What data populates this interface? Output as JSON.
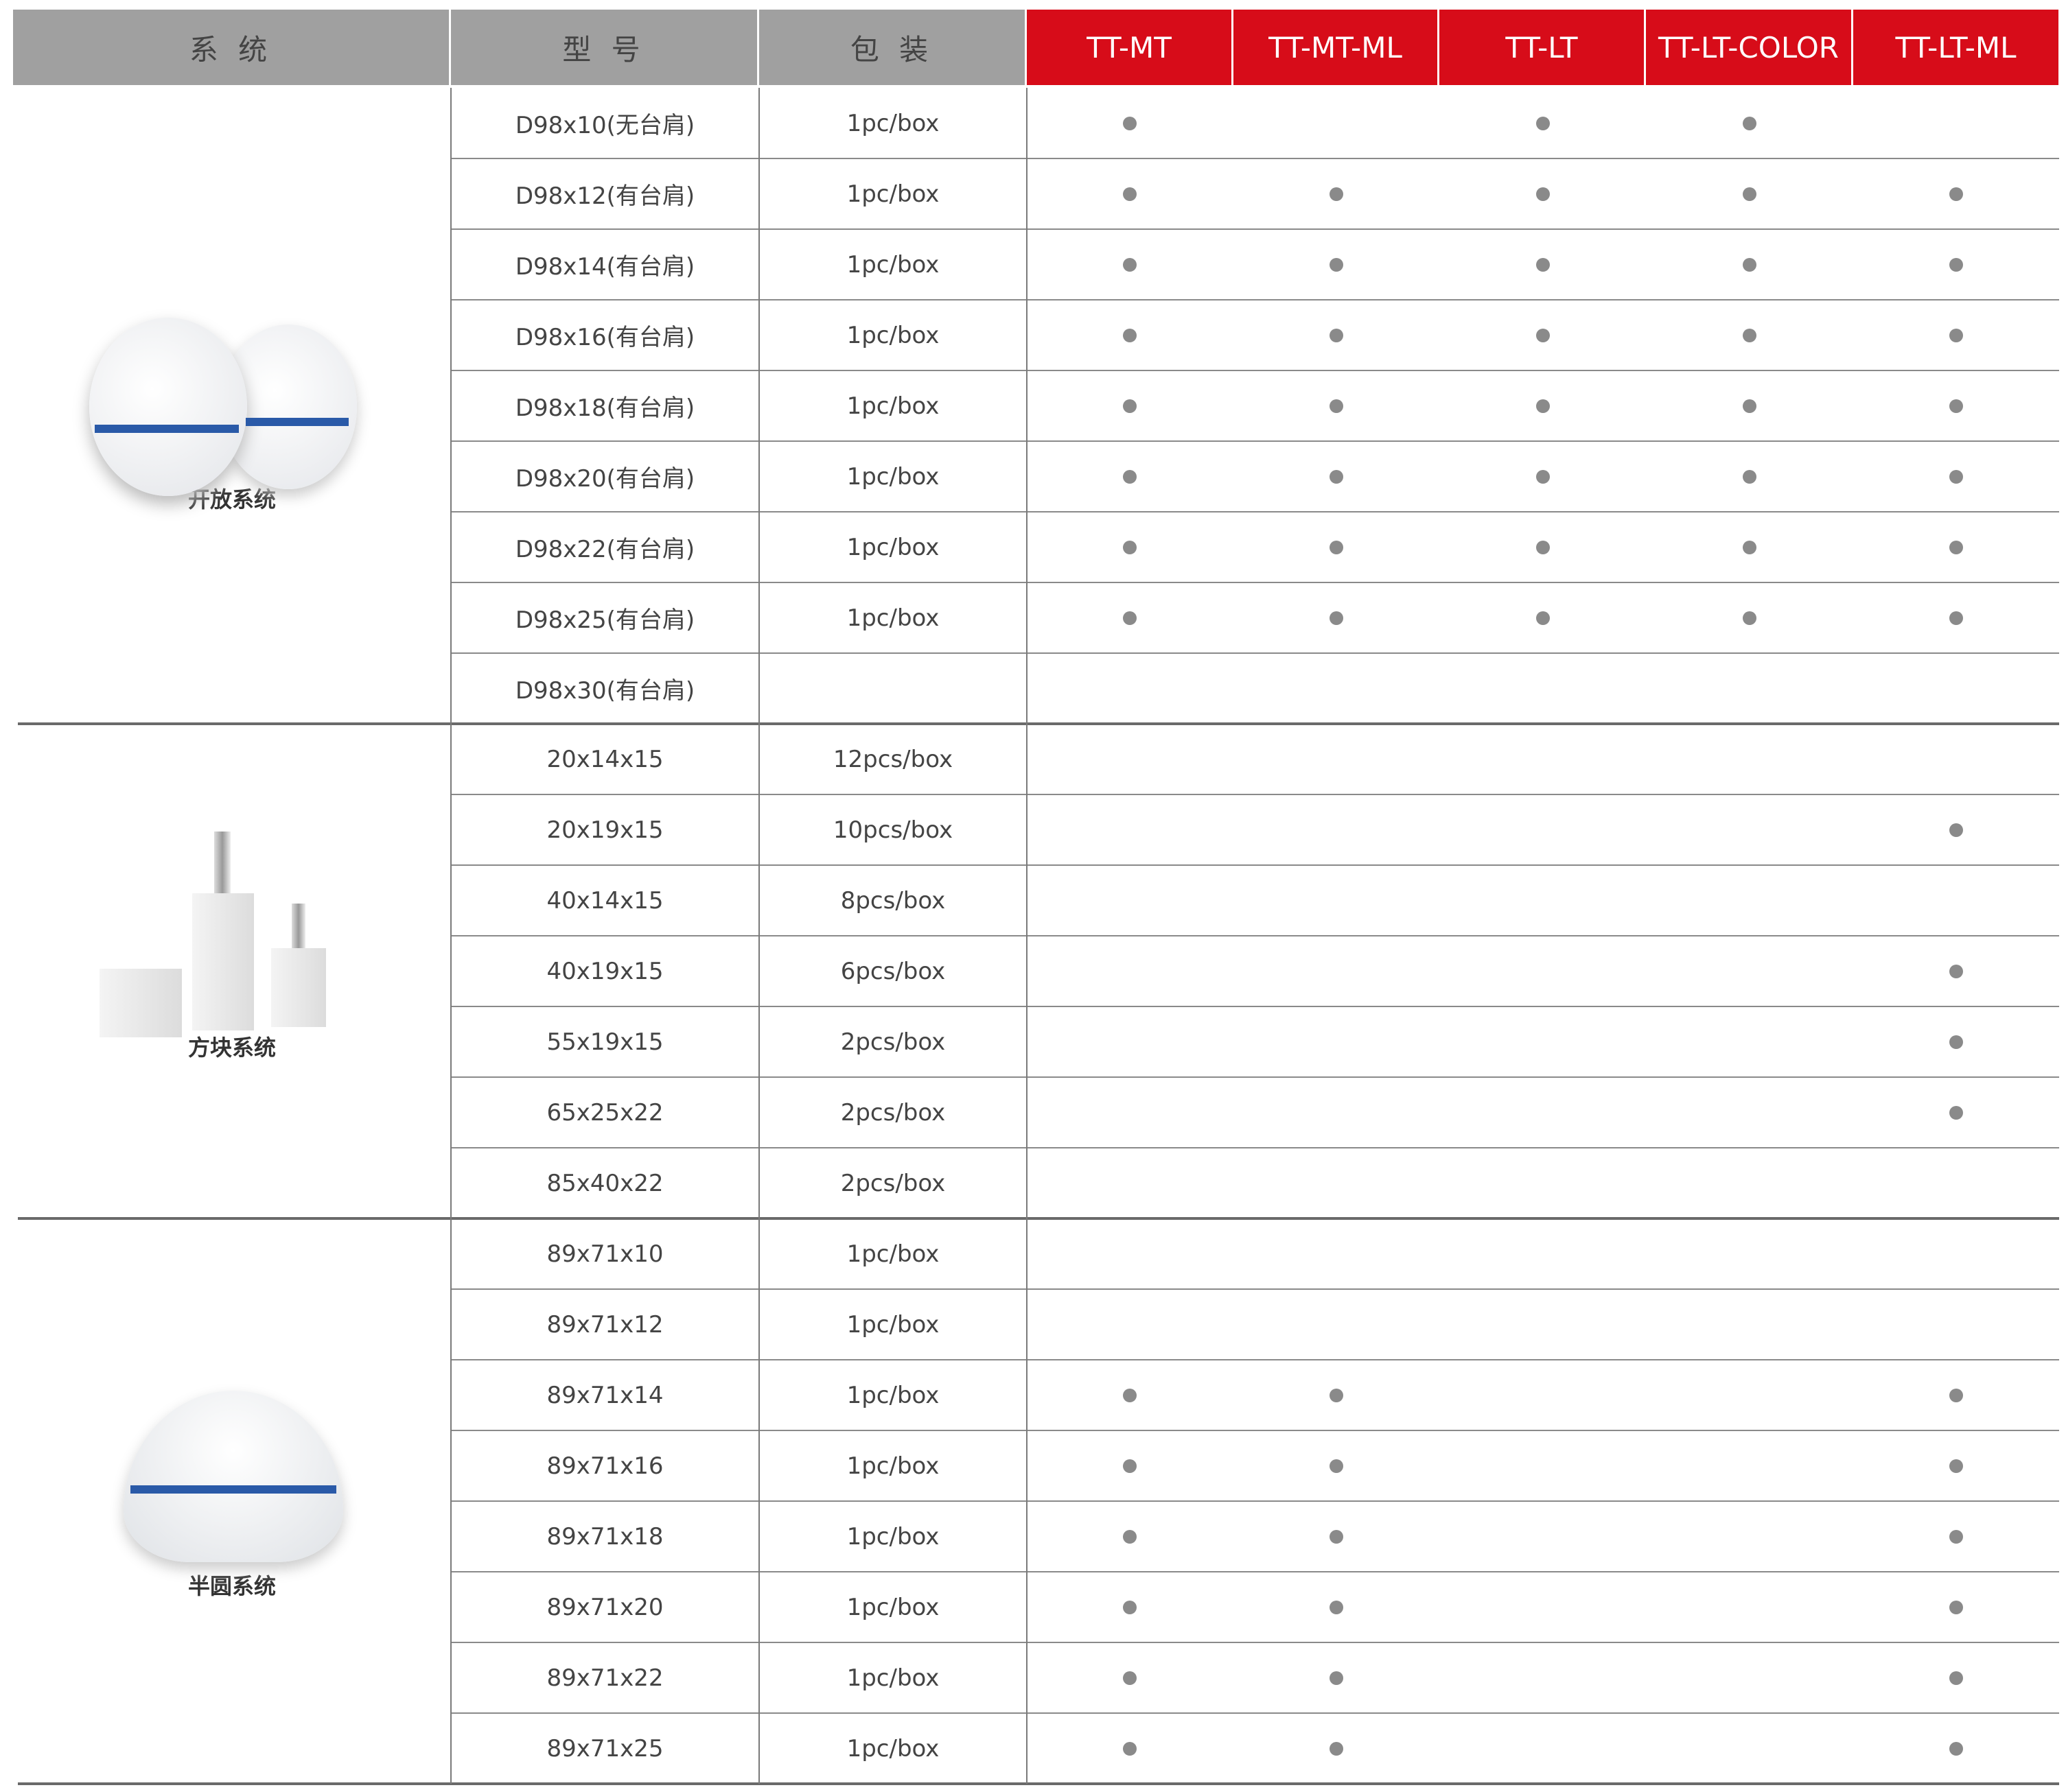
{
  "header": {
    "system": "系 统",
    "model": "型 号",
    "packaging": "包 装",
    "products": [
      "TT-MT",
      "TT-MT-ML",
      "TT-LT",
      "TT-LT-COLOR",
      "TT-LT-ML"
    ]
  },
  "colors": {
    "header_grey": "#a0a0a0",
    "header_red": "#d70c19",
    "dot": "#8a8a8a"
  },
  "groups": [
    {
      "label": "开放系统",
      "image": "zirconia-disc-image",
      "rows": [
        {
          "model": "D98x10(无台肩)",
          "packaging": "1pc/box",
          "available": [
            1,
            0,
            1,
            1,
            0
          ]
        },
        {
          "model": "D98x12(有台肩)",
          "packaging": "1pc/box",
          "available": [
            1,
            1,
            1,
            1,
            1
          ]
        },
        {
          "model": "D98x14(有台肩)",
          "packaging": "1pc/box",
          "available": [
            1,
            1,
            1,
            1,
            1
          ]
        },
        {
          "model": "D98x16(有台肩)",
          "packaging": "1pc/box",
          "available": [
            1,
            1,
            1,
            1,
            1
          ]
        },
        {
          "model": "D98x18(有台肩)",
          "packaging": "1pc/box",
          "available": [
            1,
            1,
            1,
            1,
            1
          ]
        },
        {
          "model": "D98x20(有台肩)",
          "packaging": "1pc/box",
          "available": [
            1,
            1,
            1,
            1,
            1
          ]
        },
        {
          "model": "D98x22(有台肩)",
          "packaging": "1pc/box",
          "available": [
            1,
            1,
            1,
            1,
            1
          ]
        },
        {
          "model": "D98x25(有台肩)",
          "packaging": "1pc/box",
          "available": [
            1,
            1,
            1,
            1,
            1
          ]
        },
        {
          "model": "D98x30(有台肩)",
          "packaging": "",
          "available": [
            0,
            0,
            0,
            0,
            0
          ]
        }
      ]
    },
    {
      "label": "方块系统",
      "image": "block-image",
      "rows": [
        {
          "model": "20x14x15",
          "packaging": "12pcs/box",
          "available": [
            0,
            0,
            0,
            0,
            0
          ]
        },
        {
          "model": "20x19x15",
          "packaging": "10pcs/box",
          "available": [
            0,
            0,
            0,
            0,
            1
          ]
        },
        {
          "model": "40x14x15",
          "packaging": "8pcs/box",
          "available": [
            0,
            0,
            0,
            0,
            0
          ]
        },
        {
          "model": "40x19x15",
          "packaging": "6pcs/box",
          "available": [
            0,
            0,
            0,
            0,
            1
          ]
        },
        {
          "model": "55x19x15",
          "packaging": "2pcs/box",
          "available": [
            0,
            0,
            0,
            0,
            1
          ]
        },
        {
          "model": "65x25x22",
          "packaging": "2pcs/box",
          "available": [
            0,
            0,
            0,
            0,
            1
          ]
        },
        {
          "model": "85x40x22",
          "packaging": "2pcs/box",
          "available": [
            0,
            0,
            0,
            0,
            0
          ]
        }
      ]
    },
    {
      "label": "半圆系统",
      "image": "semicircle-blank-image",
      "rows": [
        {
          "model": "89x71x10",
          "packaging": "1pc/box",
          "available": [
            0,
            0,
            0,
            0,
            0
          ]
        },
        {
          "model": "89x71x12",
          "packaging": "1pc/box",
          "available": [
            0,
            0,
            0,
            0,
            0
          ]
        },
        {
          "model": "89x71x14",
          "packaging": "1pc/box",
          "available": [
            1,
            1,
            0,
            0,
            1
          ]
        },
        {
          "model": "89x71x16",
          "packaging": "1pc/box",
          "available": [
            1,
            1,
            0,
            0,
            1
          ]
        },
        {
          "model": "89x71x18",
          "packaging": "1pc/box",
          "available": [
            1,
            1,
            0,
            0,
            1
          ]
        },
        {
          "model": "89x71x20",
          "packaging": "1pc/box",
          "available": [
            1,
            1,
            0,
            0,
            1
          ]
        },
        {
          "model": "89x71x22",
          "packaging": "1pc/box",
          "available": [
            1,
            1,
            0,
            0,
            1
          ]
        },
        {
          "model": "89x71x25",
          "packaging": "1pc/box",
          "available": [
            1,
            1,
            0,
            0,
            1
          ]
        }
      ]
    }
  ]
}
